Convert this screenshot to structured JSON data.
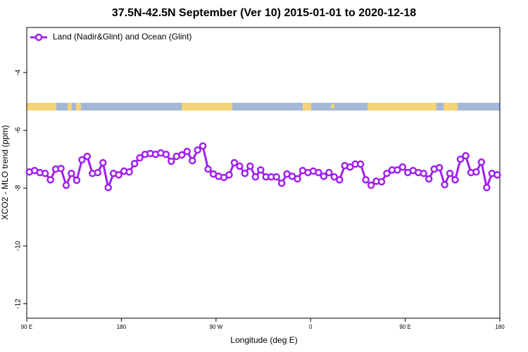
{
  "chart_data": {
    "type": "line",
    "title": "37.5N-42.5N September (Ver 10)   2015-01-01 to 2020-12-18",
    "xlabel": "Longitude (deg E)",
    "ylabel": "XCO2 - MLO trend (ppm)",
    "x": [
      92.5,
      97.5,
      102.5,
      107.5,
      112.5,
      117.5,
      122.5,
      127.5,
      132.5,
      137.5,
      142.5,
      147.5,
      152.5,
      157.5,
      162.5,
      167.5,
      172.5,
      177.5,
      182.5,
      187.5,
      192.5,
      197.5,
      202.5,
      207.5,
      212.5,
      217.5,
      222.5,
      227.5,
      232.5,
      237.5,
      242.5,
      247.5,
      252.5,
      257.5,
      262.5,
      267.5,
      272.5,
      277.5,
      282.5,
      287.5,
      292.5,
      297.5,
      302.5,
      307.5,
      312.5,
      317.5,
      322.5,
      327.5,
      332.5,
      337.5,
      342.5,
      347.5,
      352.5,
      357.5,
      362.5,
      367.5,
      372.5,
      377.5,
      382.5,
      387.5,
      392.5,
      397.5,
      402.5,
      407.5,
      412.5,
      417.5,
      422.5,
      427.5,
      432.5,
      437.5,
      442.5,
      447.5,
      452.5,
      457.5,
      462.5,
      467.5,
      472.5,
      477.5,
      482.5,
      487.5,
      492.5,
      497.5,
      502.5,
      507.5,
      512.5,
      517.5,
      522.5,
      527.5,
      532.5,
      537.5
    ],
    "series": [
      {
        "name": "Land (Nadir&Glint) and Ocean (Glint)",
        "color": "#a020f0",
        "values": [
          -7.44,
          -7.39,
          -7.46,
          -7.49,
          -7.71,
          -7.34,
          -7.32,
          -7.9,
          -7.49,
          -7.73,
          -7.02,
          -6.9,
          -7.49,
          -7.46,
          -7.12,
          -7.98,
          -7.49,
          -7.54,
          -7.41,
          -7.44,
          -7.15,
          -6.95,
          -6.83,
          -6.8,
          -6.83,
          -6.78,
          -6.83,
          -7.07,
          -6.9,
          -6.85,
          -6.73,
          -7.05,
          -6.68,
          -6.54,
          -7.34,
          -7.51,
          -7.59,
          -7.63,
          -7.54,
          -7.12,
          -7.24,
          -7.49,
          -7.24,
          -7.61,
          -7.37,
          -7.61,
          -7.61,
          -7.61,
          -7.83,
          -7.51,
          -7.59,
          -7.68,
          -7.39,
          -7.46,
          -7.41,
          -7.46,
          -7.59,
          -7.46,
          -7.61,
          -7.71,
          -7.22,
          -7.27,
          -7.17,
          -7.17,
          -7.71,
          -7.9,
          -7.76,
          -7.78,
          -7.49,
          -7.37,
          -7.37,
          -7.27,
          -7.46,
          -7.39,
          -7.46,
          -7.49,
          -7.68,
          -7.34,
          -7.29,
          -7.88,
          -7.49,
          -7.71,
          -7.0,
          -6.88,
          -7.46,
          -7.44,
          -7.1,
          -7.98,
          -7.49,
          -7.54
        ]
      }
    ],
    "xlim": [
      90,
      540
    ],
    "xticks": [
      {
        "value": 90,
        "label": "90 E"
      },
      180,
      {
        "value": 270,
        "label": "90 W"
      },
      {
        "value": 360,
        "label": "0"
      },
      {
        "value": 450,
        "label": "90 E"
      },
      {
        "value": 540,
        "label": "180"
      }
    ],
    "ylim": [
      -12.5,
      -2.44
    ],
    "yticks": [
      -12,
      -10,
      -8,
      -6,
      -4
    ],
    "legend": "upper left"
  }
}
